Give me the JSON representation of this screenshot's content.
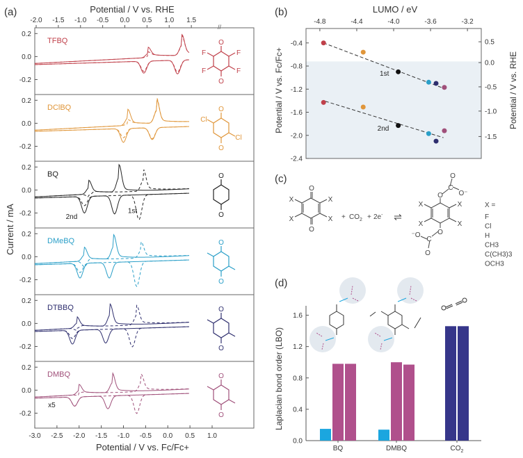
{
  "panel_labels": {
    "a": "(a)",
    "b": "(b)",
    "c": "(c)",
    "d": "(d)"
  },
  "chart_data": [
    {
      "id": "a",
      "type": "line",
      "title": "",
      "xlabel_top": "Potential / V vs. RHE",
      "xlabel_bottom": "Potential / V vs. Fc/Fc+",
      "ylabel": "Current / mA",
      "x_top_ticks": [
        "-2.0",
        "-1.5",
        "-1.0",
        "-0.5",
        "0.0",
        "0.5",
        "1.0",
        "1.5"
      ],
      "x_bottom_ticks": [
        "-3.0",
        "-2.5",
        "-2.0",
        "-1.5",
        "-1.0",
        "-0.5",
        "0.0",
        "0.5",
        "1.0"
      ],
      "xlim_fc": [
        -3.0,
        1.0
      ],
      "y_ticks": [
        "0.2",
        "0.0",
        "-0.2"
      ],
      "ylim": [
        -0.33,
        0.25
      ],
      "subplots": [
        {
          "name": "TFBQ",
          "color": "#c0404a",
          "annotation": "",
          "peaks": [
            {
              "E": -0.44,
              "ox": 0.04,
              "red": -0.13
            },
            {
              "E": 0.32,
              "ox": 0.13,
              "red": -0.15
            }
          ],
          "dashed_peaks": [
            {
              "E": -0.44,
              "ox": 0.0,
              "red": -0.11
            },
            {
              "E": 0.32,
              "ox": 0.12,
              "red": -0.13
            }
          ],
          "substituents": [
            "F",
            "F",
            "F",
            "F"
          ]
        },
        {
          "name": "DClBQ",
          "color": "#e0963a",
          "annotation": "",
          "peaks": [
            {
              "E": -0.9,
              "ox": 0.09,
              "red": -0.15
            },
            {
              "E": -0.25,
              "ox": 0.16,
              "red": -0.13
            }
          ],
          "dashed_peaks": [
            {
              "E": -0.9,
              "ox": 0.0,
              "red": -0.1
            },
            {
              "E": -0.25,
              "ox": 0.17,
              "red": -0.12
            }
          ],
          "substituents": [
            "Cl",
            "",
            "",
            "Cl"
          ]
        },
        {
          "name": "BQ",
          "color": "#222222",
          "annotation": "",
          "labels": [
            "1st",
            "2nd"
          ],
          "peaks": [
            {
              "E": -1.78,
              "ox": 0.07,
              "red": -0.18
            },
            {
              "E": -1.1,
              "ox": 0.19,
              "red": -0.2
            }
          ],
          "dashed_peaks": [
            {
              "E": -1.78,
              "ox": -0.06,
              "red": -0.1
            },
            {
              "E": -0.55,
              "ox": 0.14,
              "red": -0.27
            }
          ],
          "substituents": [
            "",
            "",
            "",
            ""
          ]
        },
        {
          "name": "DMeBQ",
          "color": "#2a9fc8",
          "annotation": "",
          "peaks": [
            {
              "E": -1.88,
              "ox": 0.07,
              "red": -0.16
            },
            {
              "E": -1.22,
              "ox": 0.16,
              "red": -0.17
            }
          ],
          "dashed_peaks": [
            {
              "E": -1.88,
              "ox": -0.1,
              "red": -0.1
            },
            {
              "E": -0.6,
              "ox": 0.09,
              "red": -0.27
            }
          ],
          "substituents": [
            "CH3",
            "",
            "",
            "CH3"
          ]
        },
        {
          "name": "DTBBQ",
          "color": "#2e2e6e",
          "annotation": "",
          "peaks": [
            {
              "E": -2.05,
              "ox": 0.05,
              "red": -0.15
            },
            {
              "E": -1.3,
              "ox": 0.14,
              "red": -0.15
            }
          ],
          "dashed_peaks": [
            {
              "E": -2.05,
              "ox": -0.05,
              "red": -0.09
            },
            {
              "E": -0.7,
              "ox": 0.12,
              "red": -0.2
            }
          ],
          "substituents": [
            "C(CH3)3",
            "",
            "",
            "C(CH3)3"
          ]
        },
        {
          "name": "DMBQ",
          "color": "#a0507a",
          "annotation": "x5",
          "peaks": [
            {
              "E": -2.0,
              "ox": 0.04,
              "red": -0.1
            },
            {
              "E": -1.25,
              "ox": 0.12,
              "red": -0.14
            }
          ],
          "dashed_peaks": [
            {
              "E": -2.0,
              "ox": -0.03,
              "red": -0.1
            },
            {
              "E": -0.6,
              "ox": 0.1,
              "red": -0.2
            }
          ],
          "substituents": [
            "OCH3",
            "",
            "",
            "OCH3"
          ]
        }
      ]
    },
    {
      "id": "b",
      "type": "scatter",
      "title": "",
      "xlabel": "LUMO / eV",
      "ylabel_left": "Potential / V vs. Fc/Fc+",
      "ylabel_right": "Potential / V vs. RHE",
      "x_ticks": [
        "-4.8",
        "-4.4",
        "-4.0",
        "-3.6",
        "-3.2"
      ],
      "xlim": [
        -4.95,
        -3.05
      ],
      "y_left_ticks": [
        "-0.4",
        "-0.8",
        "-1.2",
        "-1.6",
        "-2.0",
        "-2.4"
      ],
      "ylim_left": [
        -2.4,
        -0.15
      ],
      "y_right_ticks": [
        "0.5",
        "0.0",
        "-0.5",
        "-1.0",
        "-1.5"
      ],
      "shaded_below": -0.72,
      "series": [
        {
          "name": "1st",
          "points": [
            {
              "x": -4.76,
              "y": -0.4,
              "color": "#c0404a"
            },
            {
              "x": -4.33,
              "y": -0.56,
              "color": "#e0963a"
            },
            {
              "x": -3.95,
              "y": -0.9,
              "color": "#111111"
            },
            {
              "x": -3.62,
              "y": -1.08,
              "color": "#2a9fc8"
            },
            {
              "x": -3.54,
              "y": -1.1,
              "color": "#2e2e6e"
            },
            {
              "x": -3.45,
              "y": -1.17,
              "color": "#a0507a"
            }
          ],
          "fit": [
            [
              -4.76,
              -0.4
            ],
            [
              -3.45,
              -1.19
            ]
          ]
        },
        {
          "name": "2nd",
          "points": [
            {
              "x": -4.76,
              "y": -1.43,
              "color": "#c0404a"
            },
            {
              "x": -4.33,
              "y": -1.51,
              "color": "#e0963a"
            },
            {
              "x": -3.95,
              "y": -1.83,
              "color": "#111111"
            },
            {
              "x": -3.62,
              "y": -1.97,
              "color": "#2a9fc8"
            },
            {
              "x": -3.54,
              "y": -2.1,
              "color": "#2e2e6e"
            },
            {
              "x": -3.45,
              "y": -1.92,
              "color": "#a0507a"
            }
          ],
          "fit": [
            [
              -4.74,
              -1.41
            ],
            [
              -3.46,
              -2.04
            ]
          ]
        }
      ],
      "annotations": [
        "1st",
        "2nd"
      ]
    },
    {
      "id": "d",
      "type": "bar",
      "title": "",
      "xlabel": "",
      "ylabel": "Laplacian bond order (LBO)",
      "categories": [
        "BQ",
        "DMBQ",
        "CO2"
      ],
      "y_ticks": [
        "0.0",
        "0.4",
        "0.8",
        "1.2",
        "1.6"
      ],
      "ylim": [
        0,
        1.72
      ],
      "bars": [
        {
          "category": "BQ",
          "values": [
            0.15,
            0.98,
            0.98
          ],
          "colors": [
            "#1ba6df",
            "#b0508c",
            "#b0508c"
          ]
        },
        {
          "category": "DMBQ",
          "values": [
            0.14,
            1.0,
            0.97
          ],
          "colors": [
            "#1ba6df",
            "#b0508c",
            "#b0508c"
          ]
        },
        {
          "category": "CO2",
          "values": [
            1.46,
            1.46
          ],
          "colors": [
            "#36368a",
            "#36368a"
          ]
        }
      ]
    }
  ],
  "reaction": {
    "reactant_sub": "X",
    "plus1": "+",
    "co2": "CO",
    "co2_sub": "2",
    "plus2": "+",
    "electrons": "2e",
    "electrons_sup": "-",
    "arrow": "⇌",
    "x_equals": "X =",
    "substituents": [
      "F",
      "Cl",
      "H",
      "CH3",
      "C(CH3)3",
      "OCH3"
    ]
  }
}
